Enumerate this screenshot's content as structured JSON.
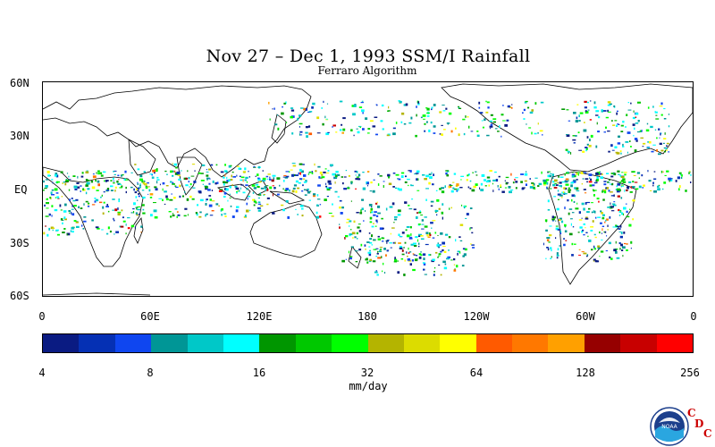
{
  "title": "Nov 27 – Dec 1, 1993 SSM/I Rainfall",
  "subtitle": "Ferraro Algorithm",
  "map": {
    "lat_labels": [
      "60N",
      "30N",
      "EQ",
      "30S",
      "60S"
    ],
    "lon_labels": [
      "0",
      "60E",
      "120E",
      "180",
      "120W",
      "60W",
      "0"
    ],
    "lat_range": [
      -63,
      63
    ],
    "lon_range": [
      0,
      360
    ]
  },
  "colorbar": {
    "colors": [
      "#0a1b82",
      "#0530b4",
      "#0f46f0",
      "#009696",
      "#00c8c8",
      "#00ffff",
      "#009600",
      "#00c800",
      "#00ff00",
      "#b4b400",
      "#dcdc00",
      "#ffff00",
      "#ff5a00",
      "#ff7800",
      "#ffa000",
      "#960000",
      "#c80000",
      "#ff0000"
    ],
    "tick_labels": [
      "4",
      "8",
      "16",
      "32",
      "64",
      "128",
      "256"
    ],
    "units": "mm/day"
  },
  "logo": {
    "text": "NOAA",
    "badge_letters": [
      "C",
      "D",
      "C"
    ]
  }
}
